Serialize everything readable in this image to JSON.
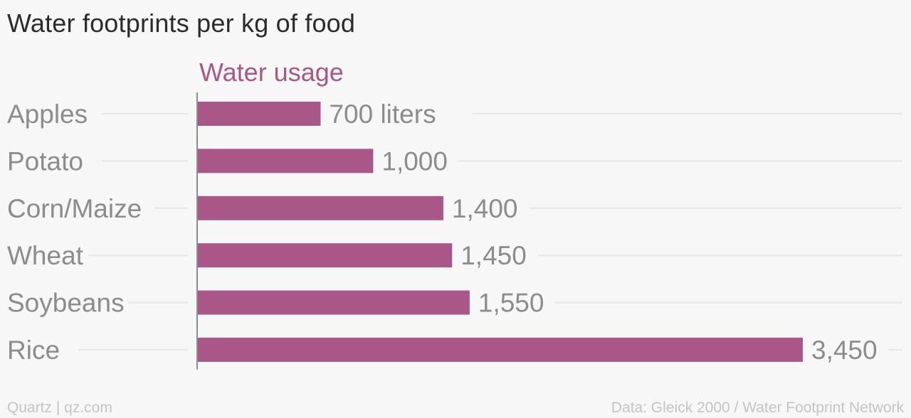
{
  "chart_data": {
    "type": "bar",
    "orientation": "horizontal",
    "title": "Water footprints per kg of food",
    "series": [
      {
        "name": "Water usage",
        "color": "#a85788",
        "values": [
          700,
          1000,
          1400,
          1450,
          1550,
          3450
        ]
      }
    ],
    "categories": [
      "Apples",
      "Potato",
      "Corn/Maize",
      "Wheat",
      "Soybeans",
      "Rice"
    ],
    "value_labels": [
      "700 liters",
      "1,000",
      "1,400",
      "1,450",
      "1,550",
      "3,450"
    ],
    "xlim": [
      0,
      3450
    ],
    "grid": true,
    "legend": "none"
  },
  "footer": {
    "left": "Quartz | qz.com",
    "right": "Data: Gleick 2000 / Water Footprint Network"
  },
  "colors": {
    "background": "#f7f7f7",
    "bar": "#a85788",
    "series_label": "#a85788",
    "category_text": "#8c8c8c",
    "value_text": "#8c8c8c",
    "grid": "#e6e6e6",
    "axis": "#8c8c8c",
    "title": "#2b2b2b",
    "footer": "#c4c4c4"
  }
}
